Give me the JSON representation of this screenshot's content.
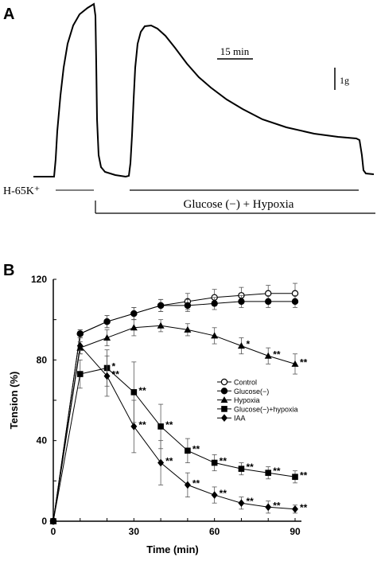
{
  "panel_a": {
    "label": "A",
    "time_scale_label": "15 min",
    "force_scale_label": "1g",
    "stimulus_1_label": "H-65K⁺",
    "stimulus_2_label": "Glucose (−) + Hypoxia"
  },
  "panel_b": {
    "label": "B"
  },
  "chart_data": {
    "type": "line",
    "xlabel": "Time (min)",
    "ylabel": "Tension (%)",
    "xlim": [
      0,
      90
    ],
    "ylim": [
      0,
      120
    ],
    "x_ticks": [
      0,
      30,
      60,
      90
    ],
    "y_ticks": [
      0,
      40,
      80,
      120
    ],
    "legend_position": "center-right",
    "x": [
      0,
      10,
      20,
      30,
      40,
      50,
      60,
      70,
      80,
      90
    ],
    "series": [
      {
        "name": "Control",
        "marker": "circle-open",
        "values": [
          0,
          93,
          99,
          103,
          107,
          109,
          111,
          112,
          113,
          113
        ],
        "errors": [
          0,
          2,
          3,
          3,
          3,
          4,
          4,
          4,
          4,
          5
        ],
        "stars": [
          "",
          "",
          "",
          "",
          "",
          "",
          "",
          "",
          "",
          ""
        ]
      },
      {
        "name": "Glucose(−)",
        "marker": "circle-filled",
        "values": [
          0,
          93,
          99,
          103,
          107,
          107,
          108,
          109,
          109,
          109
        ],
        "errors": [
          0,
          2,
          3,
          3,
          3,
          3,
          3,
          3,
          3,
          3
        ],
        "stars": [
          "",
          "",
          "",
          "",
          "",
          "",
          "",
          "",
          "",
          ""
        ]
      },
      {
        "name": "Hypoxia",
        "marker": "triangle-filled",
        "values": [
          0,
          86,
          91,
          96,
          97,
          95,
          92,
          87,
          82,
          78
        ],
        "errors": [
          0,
          3,
          4,
          4,
          3,
          3,
          4,
          4,
          4,
          5
        ],
        "stars": [
          "",
          "",
          "",
          "",
          "",
          "",
          "",
          "*",
          "**",
          "**"
        ]
      },
      {
        "name": "Glucose(−)+hypoxia",
        "marker": "square-filled",
        "values": [
          0,
          73,
          76,
          64,
          47,
          35,
          29,
          26,
          24,
          22
        ],
        "errors": [
          0,
          7,
          9,
          15,
          11,
          6,
          4,
          3,
          3,
          3
        ],
        "stars": [
          "",
          "",
          "*",
          "**",
          "**",
          "**",
          "**",
          "**",
          "**",
          "**"
        ]
      },
      {
        "name": "IAA",
        "marker": "diamond-filled",
        "values": [
          0,
          87,
          72,
          47,
          29,
          18,
          13,
          9,
          7,
          6
        ],
        "errors": [
          0,
          4,
          10,
          13,
          11,
          6,
          4,
          3,
          3,
          2
        ],
        "stars": [
          "",
          "",
          "**",
          "**",
          "**",
          "**",
          "**",
          "**",
          "**",
          "**"
        ]
      }
    ]
  }
}
